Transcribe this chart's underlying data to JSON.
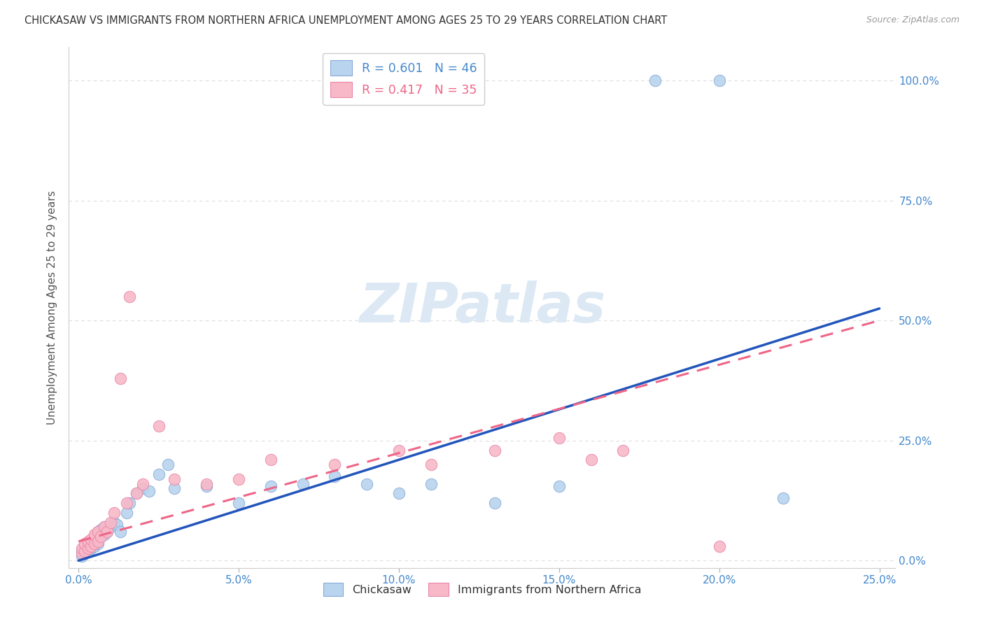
{
  "title": "CHICKASAW VS IMMIGRANTS FROM NORTHERN AFRICA UNEMPLOYMENT AMONG AGES 25 TO 29 YEARS CORRELATION CHART",
  "source": "Source: ZipAtlas.com",
  "ylabel_label": "Unemployment Among Ages 25 to 29 years",
  "blue_scatter_color": "#b8d4ee",
  "blue_scatter_edge": "#88aad8",
  "pink_scatter_color": "#f8b8c8",
  "pink_scatter_edge": "#e888a8",
  "blue_line_color": "#2255bb",
  "pink_line_color": "#ee6688",
  "watermark_color": "#dce8f4",
  "title_color": "#333333",
  "tick_color": "#4488cc",
  "ylabel_color": "#555555",
  "grid_color": "#dddddd",
  "chickasaw_x": [
    0.001,
    0.001,
    0.002,
    0.002,
    0.002,
    0.003,
    0.003,
    0.003,
    0.004,
    0.004,
    0.005,
    0.005,
    0.005,
    0.006,
    0.006,
    0.006,
    0.007,
    0.007,
    0.008,
    0.008,
    0.009,
    0.01,
    0.011,
    0.012,
    0.013,
    0.015,
    0.016,
    0.018,
    0.02,
    0.022,
    0.025,
    0.028,
    0.03,
    0.04,
    0.05,
    0.06,
    0.07,
    0.08,
    0.09,
    0.1,
    0.11,
    0.13,
    0.15,
    0.18,
    0.2,
    0.22
  ],
  "chickasaw_y": [
    0.01,
    0.02,
    0.015,
    0.025,
    0.03,
    0.02,
    0.03,
    0.035,
    0.025,
    0.04,
    0.03,
    0.04,
    0.05,
    0.035,
    0.045,
    0.06,
    0.05,
    0.065,
    0.055,
    0.07,
    0.06,
    0.07,
    0.08,
    0.075,
    0.06,
    0.1,
    0.12,
    0.14,
    0.15,
    0.145,
    0.18,
    0.2,
    0.15,
    0.155,
    0.12,
    0.155,
    0.16,
    0.175,
    0.16,
    0.14,
    0.16,
    0.12,
    0.155,
    1.0,
    1.0,
    0.13
  ],
  "northern_africa_x": [
    0.001,
    0.001,
    0.002,
    0.002,
    0.003,
    0.003,
    0.004,
    0.004,
    0.005,
    0.005,
    0.006,
    0.006,
    0.007,
    0.008,
    0.009,
    0.01,
    0.011,
    0.013,
    0.015,
    0.016,
    0.018,
    0.02,
    0.025,
    0.03,
    0.04,
    0.05,
    0.06,
    0.08,
    0.1,
    0.11,
    0.13,
    0.15,
    0.16,
    0.17,
    0.2
  ],
  "northern_africa_y": [
    0.015,
    0.025,
    0.02,
    0.035,
    0.025,
    0.04,
    0.03,
    0.045,
    0.035,
    0.055,
    0.04,
    0.06,
    0.05,
    0.07,
    0.06,
    0.08,
    0.1,
    0.38,
    0.12,
    0.55,
    0.14,
    0.16,
    0.28,
    0.17,
    0.16,
    0.17,
    0.21,
    0.2,
    0.23,
    0.2,
    0.23,
    0.255,
    0.21,
    0.23,
    0.03
  ],
  "xlim": [
    0.0,
    0.25
  ],
  "ylim": [
    0.0,
    1.05
  ],
  "xticks": [
    0.0,
    0.05,
    0.1,
    0.15,
    0.2,
    0.25
  ],
  "xticklabels": [
    "0.0%",
    "5.0%",
    "10.0%",
    "15.0%",
    "20.0%",
    "25.0%"
  ],
  "yticks": [
    0.0,
    0.25,
    0.5,
    0.75,
    1.0
  ],
  "yticklabels": [
    "0.0%",
    "25.0%",
    "50.0%",
    "75.0%",
    "100.0%"
  ],
  "blue_line_x0": 0.0,
  "blue_line_y0": 0.0,
  "blue_line_x1": 0.25,
  "blue_line_y1": 0.525,
  "pink_line_x0": 0.0,
  "pink_line_y0": 0.04,
  "pink_line_x1": 0.25,
  "pink_line_y1": 0.5
}
